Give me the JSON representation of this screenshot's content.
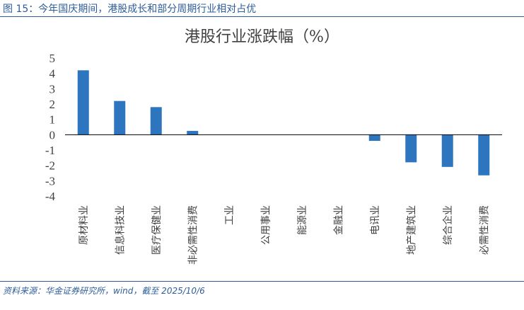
{
  "figure_title": "图 15：今年国庆期间，港股成长和部分周期行业相对占优",
  "source": "资料来源：华金证券研究所，wind，截至 2025/10/6",
  "colors": {
    "accent": "#2f5d9a",
    "bar": "#2e75c0",
    "text": "#404040",
    "axis": "#000000"
  },
  "chart_data": {
    "type": "bar",
    "title": "港股行业涨跌幅（%）",
    "xlabel": "",
    "ylabel": "",
    "ylim": [
      -4,
      5
    ],
    "yticks": [
      5,
      4,
      3,
      2,
      1,
      0,
      -1,
      -2,
      -3,
      -4
    ],
    "categories": [
      "原材料业",
      "信息科技业",
      "医疗保健业",
      "非必需性消费",
      "工业",
      "公用事业",
      "能源业",
      "金融业",
      "电讯业",
      "地产建筑业",
      "综合企业",
      "必需性消费"
    ],
    "values": [
      4.2,
      2.2,
      1.8,
      0.25,
      0.0,
      0.0,
      0.0,
      0.0,
      -0.4,
      -1.8,
      -2.1,
      -2.65
    ],
    "grid": false,
    "legend": "none"
  }
}
